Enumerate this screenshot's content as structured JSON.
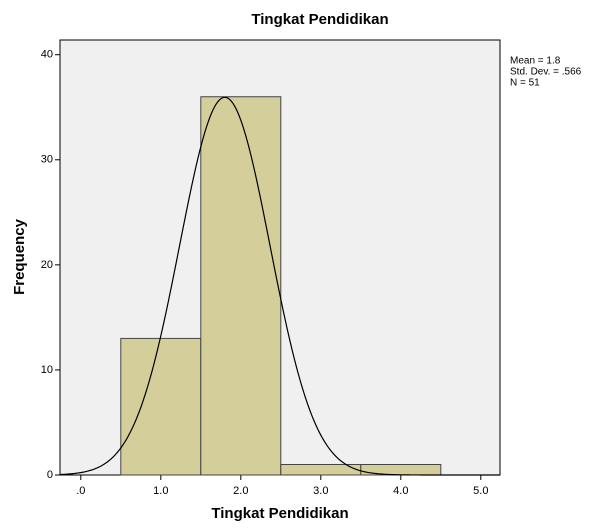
{
  "chart_data": {
    "type": "histogram",
    "title": "Tingkat Pendidikan",
    "xlabel": "Tingkat Pendidikan",
    "ylabel": "Frequency",
    "bins": [
      0.5,
      1.5,
      2.5,
      3.5,
      4.5
    ],
    "counts": [
      13,
      36,
      1,
      1
    ],
    "color": "#d3ce9a",
    "normal_curve": {
      "mean": 1.8,
      "sd": 0.566,
      "n": 51
    },
    "annotations": [
      "Mean = 1.8",
      "Std. Dev. = .566",
      "N = 51"
    ],
    "xlim": [
      -0.26,
      5.24
    ],
    "xticks": [
      {
        "value": 0,
        "label": ".0"
      },
      {
        "value": 1,
        "label": "1.0"
      },
      {
        "value": 2,
        "label": "2.0"
      },
      {
        "value": 3,
        "label": "3.0"
      },
      {
        "value": 4,
        "label": "4.0"
      },
      {
        "value": 5,
        "label": "5.0"
      }
    ],
    "ylim": [
      0,
      41.4
    ],
    "yticks": [
      0,
      10,
      20,
      30,
      40
    ]
  }
}
